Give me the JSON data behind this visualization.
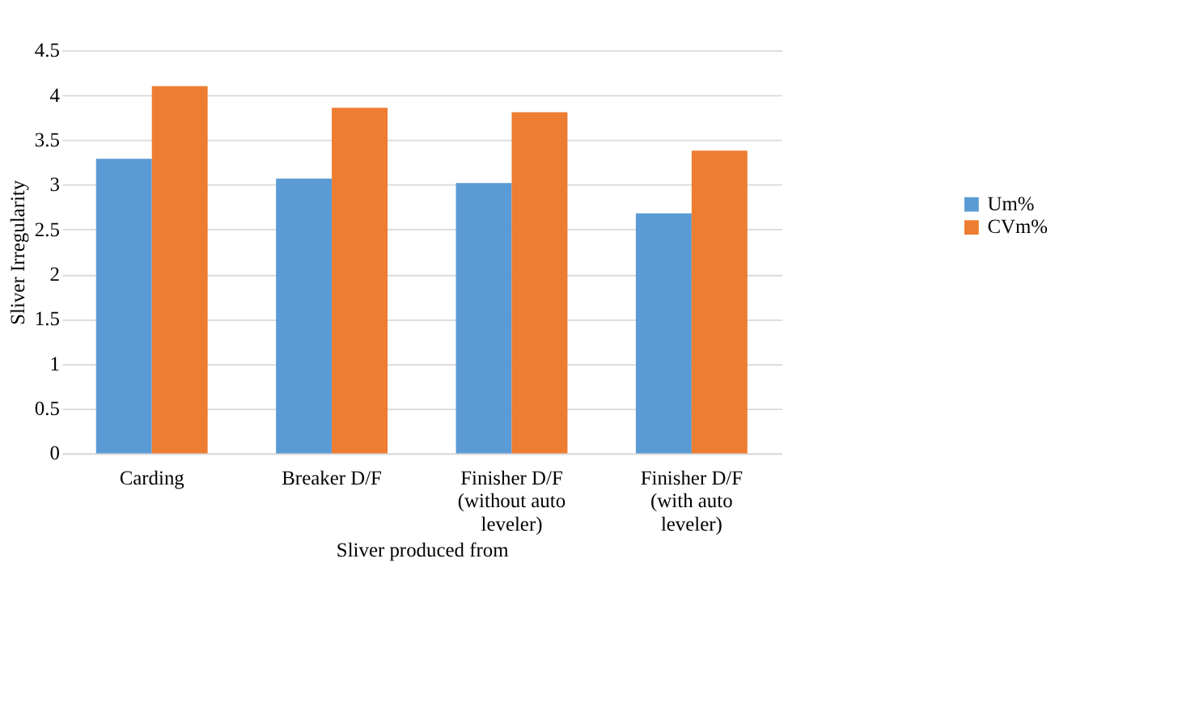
{
  "chart_data": {
    "type": "bar",
    "xlabel": "Sliver produced from",
    "ylabel": "Sliver Irregularity",
    "categories": [
      "Carding",
      "Breaker D/F",
      "Finisher D/F\n(without auto\nleveler)",
      "Finisher D/F\n(with auto\nleveler)"
    ],
    "series": [
      {
        "name": "Um%",
        "color": "#5b9bd5",
        "values": [
          3.29,
          3.07,
          3.02,
          2.68
        ]
      },
      {
        "name": "CVm%",
        "color": "#ed7d31",
        "values": [
          4.1,
          3.86,
          3.81,
          3.38
        ]
      }
    ],
    "ylim": [
      0,
      4.5
    ],
    "yticks": [
      0,
      0.5,
      1,
      1.5,
      2,
      2.5,
      3,
      3.5,
      4,
      4.5
    ],
    "grid": "y",
    "legend": "right"
  }
}
